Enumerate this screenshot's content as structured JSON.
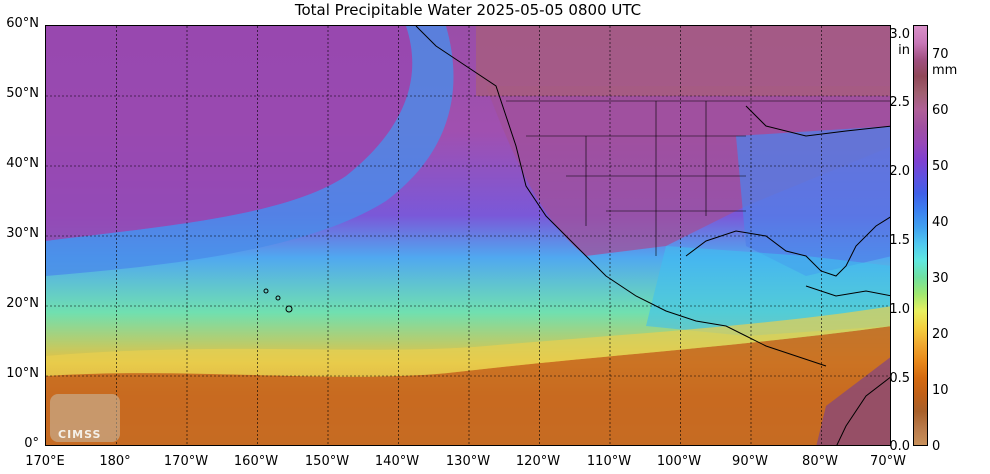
{
  "title": "Total Precipitable Water  2025-05-05 0800 UTC",
  "lat_labels": [
    "60°N",
    "50°N",
    "40°N",
    "30°N",
    "20°N",
    "10°N",
    "0°"
  ],
  "lon_labels": [
    "170°E",
    "180°",
    "170°W",
    "160°W",
    "150°W",
    "140°W",
    "130°W",
    "120°W",
    "110°W",
    "100°W",
    "90°W",
    "80°W",
    "70°W"
  ],
  "colorbar": {
    "inch_unit": "in",
    "mm_unit": "mm",
    "inch_ticks": [
      "3.0",
      "2.5",
      "2.0",
      "1.5",
      "1.0",
      "0.5",
      "0.0"
    ],
    "mm_ticks": [
      "70",
      "60",
      "50",
      "40",
      "30",
      "20",
      "10",
      "0"
    ]
  },
  "logo_text": "CIMSS",
  "colors": {
    "dry": "#9848b8",
    "moist_low": "#40a0f0",
    "moist_mid": "#70e0a0",
    "wet": "#c06018",
    "land_north": "#b07080"
  }
}
